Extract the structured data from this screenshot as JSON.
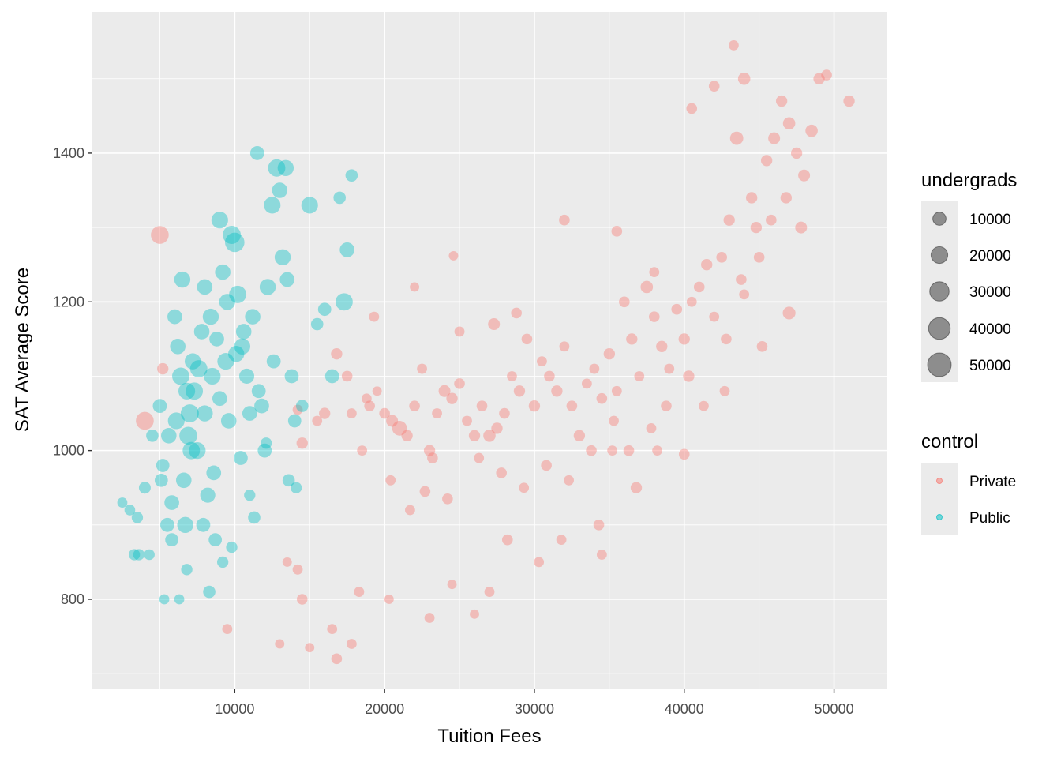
{
  "chart_data": {
    "type": "scatter",
    "xlabel": "Tuition Fees",
    "ylabel": "SAT Average Score",
    "xlim": [
      500,
      53500
    ],
    "ylim": [
      680,
      1590
    ],
    "x_ticks": [
      10000,
      20000,
      30000,
      40000,
      50000
    ],
    "y_ticks": [
      800,
      1000,
      1200,
      1400
    ],
    "x_tick_labels": [
      "10000",
      "20000",
      "30000",
      "40000",
      "50000"
    ],
    "y_tick_labels": [
      "800",
      "1000",
      "1200",
      "1400"
    ],
    "grid": true,
    "panel_background": "#ebebeb",
    "point_alpha": 0.4,
    "size_legend": {
      "title": "undergrads",
      "values": [
        10000,
        20000,
        30000,
        40000,
        50000
      ],
      "labels": [
        "10000",
        "20000",
        "30000",
        "40000",
        "50000"
      ]
    },
    "color_legend": {
      "title": "control",
      "entries": [
        {
          "label": "Private",
          "color": "#f8766d"
        },
        {
          "label": "Public",
          "color": "#00bfc4"
        }
      ]
    },
    "series": [
      {
        "name": "Private",
        "color": "#f8766d",
        "points": [
          [
            4000,
            1040,
            24000
          ],
          [
            5000,
            1290,
            24000
          ],
          [
            5200,
            1110,
            6000
          ],
          [
            14500,
            1010,
            6000
          ],
          [
            14200,
            1055,
            4000
          ],
          [
            15500,
            1040,
            4000
          ],
          [
            16000,
            1050,
            6000
          ],
          [
            16800,
            1130,
            6000
          ],
          [
            17500,
            1100,
            5000
          ],
          [
            17800,
            1050,
            4000
          ],
          [
            18500,
            1000,
            4000
          ],
          [
            19000,
            1060,
            5000
          ],
          [
            19500,
            1080,
            3000
          ],
          [
            20000,
            1050,
            5000
          ],
          [
            20500,
            1040,
            7000
          ],
          [
            21000,
            1030,
            14000
          ],
          [
            21500,
            1020,
            6000
          ],
          [
            22000,
            1060,
            5000
          ],
          [
            22500,
            1110,
            4000
          ],
          [
            23000,
            1000,
            6000
          ],
          [
            23200,
            990,
            5000
          ],
          [
            23500,
            1050,
            4000
          ],
          [
            24000,
            1080,
            7000
          ],
          [
            24500,
            1070,
            6000
          ],
          [
            25000,
            1090,
            5000
          ],
          [
            25500,
            1040,
            4000
          ],
          [
            26000,
            1020,
            6000
          ],
          [
            26500,
            1060,
            5000
          ],
          [
            27000,
            1020,
            8000
          ],
          [
            27500,
            1030,
            6000
          ],
          [
            28000,
            1050,
            5000
          ],
          [
            28500,
            1100,
            4000
          ],
          [
            29000,
            1080,
            6000
          ],
          [
            29500,
            1150,
            5000
          ],
          [
            30000,
            1060,
            6000
          ],
          [
            30500,
            1120,
            4000
          ],
          [
            31000,
            1100,
            5000
          ],
          [
            31500,
            1080,
            6000
          ],
          [
            32000,
            1140,
            4000
          ],
          [
            32500,
            1060,
            5000
          ],
          [
            33000,
            1020,
            6000
          ],
          [
            33500,
            1090,
            4000
          ],
          [
            34000,
            1110,
            4000
          ],
          [
            34500,
            1070,
            5000
          ],
          [
            35000,
            1130,
            6000
          ],
          [
            35500,
            1080,
            4000
          ],
          [
            36000,
            1200,
            5000
          ],
          [
            36500,
            1150,
            6000
          ],
          [
            37000,
            1100,
            4000
          ],
          [
            37500,
            1220,
            8000
          ],
          [
            38000,
            1180,
            5000
          ],
          [
            38500,
            1140,
            6000
          ],
          [
            39000,
            1110,
            4000
          ],
          [
            39500,
            1190,
            5000
          ],
          [
            40000,
            1150,
            6000
          ],
          [
            40500,
            1200,
            4000
          ],
          [
            41000,
            1220,
            5000
          ],
          [
            41500,
            1250,
            6000
          ],
          [
            42000,
            1180,
            4000
          ],
          [
            42500,
            1260,
            5000
          ],
          [
            43000,
            1310,
            6000
          ],
          [
            43500,
            1420,
            10000
          ],
          [
            44000,
            1500,
            8000
          ],
          [
            44500,
            1340,
            6000
          ],
          [
            45000,
            1260,
            5000
          ],
          [
            45500,
            1390,
            6000
          ],
          [
            46000,
            1420,
            7000
          ],
          [
            46500,
            1470,
            6000
          ],
          [
            47000,
            1440,
            8000
          ],
          [
            47500,
            1400,
            6000
          ],
          [
            48000,
            1370,
            7000
          ],
          [
            48500,
            1430,
            8000
          ],
          [
            49000,
            1500,
            6000
          ],
          [
            49500,
            1505,
            5000
          ],
          [
            51000,
            1470,
            6000
          ],
          [
            43300,
            1545,
            4000
          ],
          [
            42000,
            1490,
            5000
          ],
          [
            40500,
            1460,
            5000
          ],
          [
            47000,
            1185,
            9000
          ],
          [
            45200,
            1140,
            5000
          ],
          [
            44000,
            1210,
            4000
          ],
          [
            42700,
            1080,
            4000
          ],
          [
            40000,
            995,
            5000
          ],
          [
            38200,
            1000,
            4000
          ],
          [
            36800,
            950,
            6000
          ],
          [
            35200,
            1000,
            4000
          ],
          [
            34300,
            900,
            5000
          ],
          [
            34500,
            860,
            4000
          ],
          [
            31800,
            880,
            4000
          ],
          [
            30300,
            850,
            4000
          ],
          [
            28200,
            880,
            5000
          ],
          [
            27000,
            810,
            4000
          ],
          [
            26000,
            780,
            3000
          ],
          [
            24500,
            820,
            3000
          ],
          [
            23000,
            775,
            4000
          ],
          [
            20300,
            800,
            3000
          ],
          [
            18300,
            810,
            4000
          ],
          [
            17800,
            740,
            4000
          ],
          [
            16800,
            720,
            5000
          ],
          [
            16500,
            760,
            4000
          ],
          [
            15000,
            735,
            3000
          ],
          [
            14500,
            800,
            5000
          ],
          [
            14200,
            840,
            4000
          ],
          [
            13500,
            850,
            3000
          ],
          [
            9500,
            760,
            4000
          ],
          [
            13000,
            740,
            3000
          ],
          [
            24600,
            1262,
            3000
          ],
          [
            32000,
            1310,
            5000
          ],
          [
            35500,
            1295,
            5000
          ],
          [
            38000,
            1240,
            4000
          ],
          [
            28800,
            1185,
            5000
          ],
          [
            27300,
            1170,
            7000
          ],
          [
            25000,
            1160,
            4000
          ],
          [
            22000,
            1220,
            3000
          ],
          [
            19300,
            1180,
            4000
          ],
          [
            18800,
            1070,
            4000
          ],
          [
            20400,
            960,
            4000
          ],
          [
            21700,
            920,
            4000
          ],
          [
            22700,
            945,
            5000
          ],
          [
            24200,
            935,
            5000
          ],
          [
            26300,
            990,
            4000
          ],
          [
            27800,
            970,
            5000
          ],
          [
            29300,
            950,
            4000
          ],
          [
            30800,
            980,
            5000
          ],
          [
            32300,
            960,
            4000
          ],
          [
            33800,
            1000,
            5000
          ],
          [
            35300,
            1040,
            4000
          ],
          [
            36300,
            1000,
            5000
          ],
          [
            37800,
            1030,
            4000
          ],
          [
            38800,
            1060,
            5000
          ],
          [
            40300,
            1100,
            6000
          ],
          [
            41300,
            1060,
            4000
          ],
          [
            42800,
            1150,
            5000
          ],
          [
            43800,
            1230,
            5000
          ],
          [
            44800,
            1300,
            6000
          ],
          [
            45800,
            1310,
            5000
          ],
          [
            46800,
            1340,
            6000
          ],
          [
            47800,
            1300,
            7000
          ]
        ]
      },
      {
        "name": "Public",
        "color": "#00bfc4",
        "points": [
          [
            2500,
            930,
            4000
          ],
          [
            3000,
            920,
            5000
          ],
          [
            3500,
            910,
            6000
          ],
          [
            3600,
            860,
            6000
          ],
          [
            4000,
            950,
            7000
          ],
          [
            4500,
            1020,
            8000
          ],
          [
            5000,
            1060,
            12000
          ],
          [
            5200,
            980,
            10000
          ],
          [
            5500,
            900,
            12000
          ],
          [
            5800,
            880,
            10000
          ],
          [
            6000,
            1180,
            14000
          ],
          [
            6200,
            1140,
            16000
          ],
          [
            6500,
            1230,
            18000
          ],
          [
            6800,
            1080,
            20000
          ],
          [
            7000,
            1050,
            25000
          ],
          [
            7200,
            1120,
            18000
          ],
          [
            7500,
            1000,
            20000
          ],
          [
            7800,
            1160,
            16000
          ],
          [
            8000,
            1050,
            18000
          ],
          [
            8200,
            940,
            15000
          ],
          [
            8500,
            1100,
            20000
          ],
          [
            8800,
            1150,
            14000
          ],
          [
            9000,
            1310,
            20000
          ],
          [
            9200,
            1240,
            16000
          ],
          [
            9500,
            1200,
            18000
          ],
          [
            9800,
            1290,
            25000
          ],
          [
            10000,
            1280,
            30000
          ],
          [
            10200,
            1210,
            22000
          ],
          [
            10500,
            1140,
            18000
          ],
          [
            10800,
            1100,
            15000
          ],
          [
            11000,
            1050,
            14000
          ],
          [
            11200,
            1180,
            16000
          ],
          [
            11500,
            1400,
            12000
          ],
          [
            11800,
            1060,
            14000
          ],
          [
            12000,
            1000,
            12000
          ],
          [
            12200,
            1220,
            18000
          ],
          [
            12500,
            1330,
            20000
          ],
          [
            12800,
            1380,
            22000
          ],
          [
            13000,
            1350,
            16000
          ],
          [
            13200,
            1260,
            18000
          ],
          [
            13500,
            1230,
            14000
          ],
          [
            13800,
            1100,
            12000
          ],
          [
            14000,
            1040,
            10000
          ],
          [
            14500,
            1060,
            8000
          ],
          [
            15000,
            1330,
            20000
          ],
          [
            15500,
            1170,
            8000
          ],
          [
            16000,
            1190,
            10000
          ],
          [
            16500,
            1100,
            12000
          ],
          [
            17000,
            1340,
            8000
          ],
          [
            17500,
            1270,
            14000
          ],
          [
            17800,
            1370,
            8000
          ],
          [
            17300,
            1200,
            22000
          ],
          [
            13400,
            1380,
            18000
          ],
          [
            12100,
            1010,
            6000
          ],
          [
            11300,
            910,
            8000
          ],
          [
            9200,
            850,
            6000
          ],
          [
            8300,
            810,
            8000
          ],
          [
            6800,
            840,
            6000
          ],
          [
            6300,
            800,
            4000
          ],
          [
            5300,
            800,
            4000
          ],
          [
            4300,
            860,
            5000
          ],
          [
            3300,
            860,
            6000
          ],
          [
            6600,
            960,
            16000
          ],
          [
            7300,
            1080,
            22000
          ],
          [
            8600,
            970,
            14000
          ],
          [
            9600,
            1040,
            16000
          ],
          [
            10400,
            990,
            12000
          ],
          [
            6900,
            1020,
            24000
          ],
          [
            7600,
            1110,
            22000
          ],
          [
            8400,
            1180,
            18000
          ],
          [
            9400,
            1120,
            20000
          ],
          [
            10600,
            1160,
            16000
          ],
          [
            6100,
            1040,
            20000
          ],
          [
            5600,
            1020,
            16000
          ],
          [
            6400,
            1100,
            22000
          ],
          [
            7100,
            1000,
            22000
          ],
          [
            8000,
            1220,
            16000
          ],
          [
            9000,
            1070,
            14000
          ],
          [
            10100,
            1130,
            18000
          ],
          [
            11600,
            1080,
            12000
          ],
          [
            12600,
            1120,
            12000
          ],
          [
            13600,
            960,
            8000
          ],
          [
            14100,
            950,
            6000
          ],
          [
            11000,
            940,
            6000
          ],
          [
            9800,
            870,
            6000
          ],
          [
            8700,
            880,
            10000
          ],
          [
            7900,
            900,
            12000
          ],
          [
            6700,
            900,
            18000
          ],
          [
            5800,
            930,
            14000
          ],
          [
            5100,
            960,
            10000
          ]
        ]
      }
    ]
  }
}
